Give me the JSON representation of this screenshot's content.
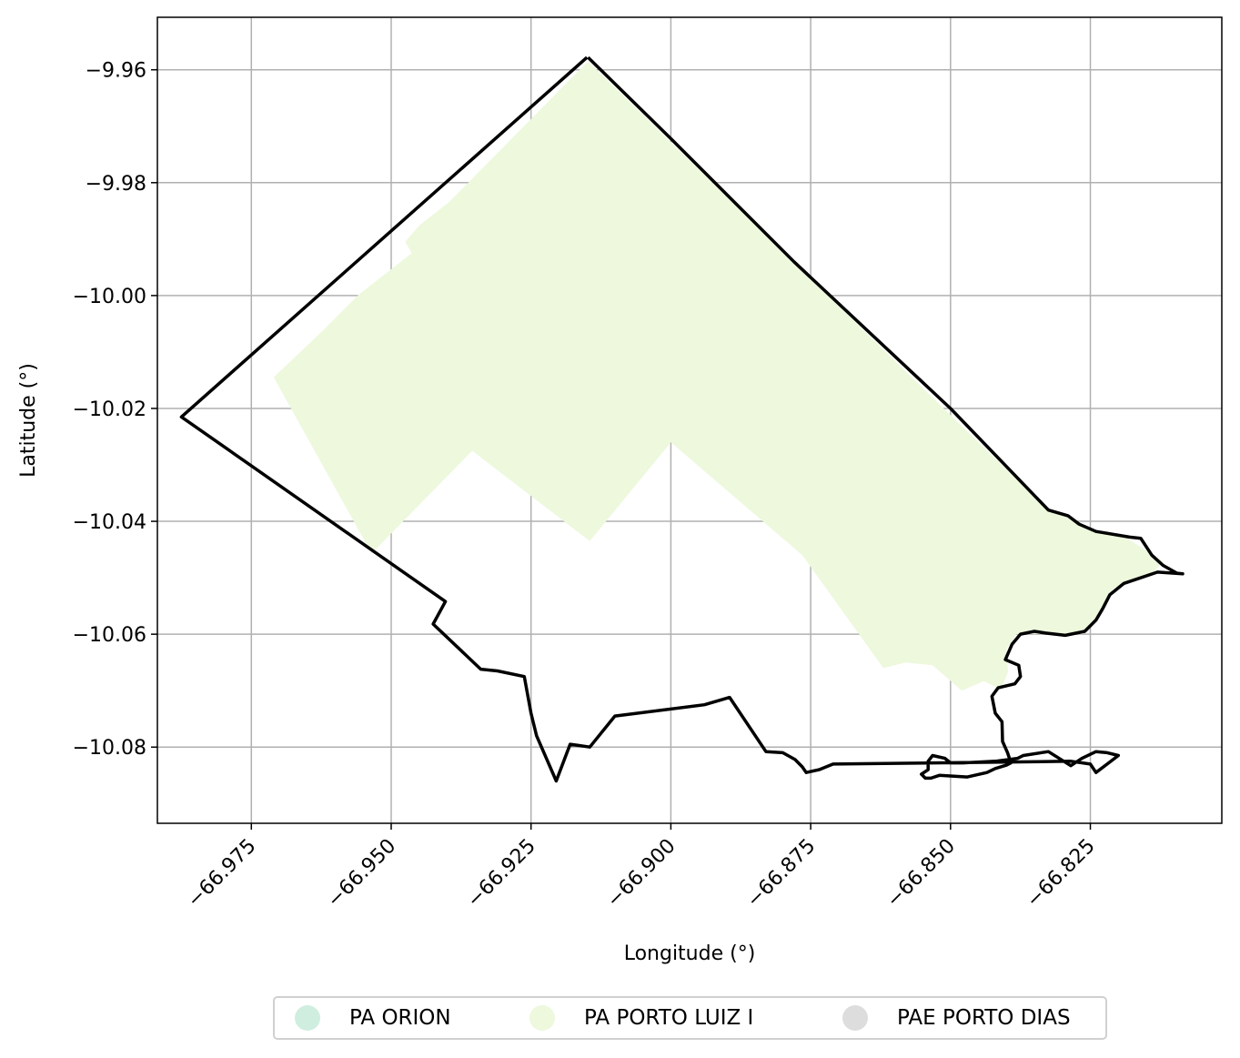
{
  "colors": {
    "pa_orion": "#cfeee0",
    "pa_porto_luiz_i": "#edf8dd",
    "pae_porto_dias": "#dddddd",
    "boundary": "#000000",
    "grid": "#b0b0b0"
  },
  "chart_data": {
    "type": "map",
    "xlabel": "Longitude (°)",
    "ylabel": "Latitude (°)",
    "xlim": [
      -66.9918,
      -66.8015
    ],
    "ylim": [
      -10.0935,
      -9.9507
    ],
    "grid": true,
    "legend_position": "bottom-center",
    "x_ticks": [
      -66.975,
      -66.95,
      -66.925,
      -66.9,
      -66.875,
      -66.85,
      -66.825
    ],
    "x_tick_labels": [
      "−66.975",
      "−66.950",
      "−66.925",
      "−66.900",
      "−66.875",
      "−66.850",
      "−66.825"
    ],
    "y_ticks": [
      -9.96,
      -9.98,
      -10.0,
      -10.02,
      -10.04,
      -10.06,
      -10.08
    ],
    "y_tick_labels": [
      "−9.96",
      "−9.98",
      "−10.00",
      "−10.02",
      "−10.04",
      "−10.06",
      "−10.08"
    ],
    "legend": [
      {
        "name": "PA ORION",
        "color_key": "pa_orion"
      },
      {
        "name": "PA PORTO LUIZ I",
        "color_key": "pa_porto_luiz_i"
      },
      {
        "name": "PAE PORTO DIAS",
        "color_key": "pae_porto_dias"
      }
    ],
    "filled_region": {
      "name": "PA PORTO LUIZ I",
      "coords": [
        [
          -66.9148,
          -9.9585
        ],
        [
          -66.8327,
          -10.0379
        ],
        [
          -66.8265,
          -10.0403
        ],
        [
          -66.8253,
          -10.0415
        ],
        [
          -66.8192,
          -10.0425
        ],
        [
          -66.812,
          -10.0471
        ],
        [
          -66.814,
          -10.0493
        ],
        [
          -66.821,
          -10.0519
        ],
        [
          -66.8234,
          -10.057
        ],
        [
          -66.8264,
          -10.06
        ],
        [
          -66.8382,
          -10.06
        ],
        [
          -66.84,
          -10.0626
        ],
        [
          -66.8397,
          -10.0667
        ],
        [
          -66.841,
          -10.0698
        ],
        [
          -66.844,
          -10.0683
        ],
        [
          -66.848,
          -10.07
        ],
        [
          -66.8532,
          -10.0655
        ],
        [
          -66.858,
          -10.065
        ],
        [
          -66.862,
          -10.066
        ],
        [
          -66.8765,
          -10.046
        ],
        [
          -66.9,
          -10.026
        ],
        [
          -66.9145,
          -10.0435
        ],
        [
          -66.9355,
          -10.0275
        ],
        [
          -66.9535,
          -10.0457
        ],
        [
          -66.971,
          -10.0145
        ],
        [
          -66.962,
          -10.006
        ],
        [
          -66.956,
          -10.0
        ],
        [
          -66.9463,
          -9.9925
        ],
        [
          -66.9475,
          -9.9905
        ],
        [
          -66.945,
          -9.9876
        ],
        [
          -66.9397,
          -9.9835
        ]
      ]
    },
    "boundary": {
      "coords": [
        [
          -66.9148,
          -9.9578
        ],
        [
          -66.9,
          -9.9722
        ],
        [
          -66.878,
          -9.994
        ],
        [
          -66.85,
          -10.02
        ],
        [
          -66.8325,
          -10.038
        ],
        [
          -66.829,
          -10.039
        ],
        [
          -66.827,
          -10.0405
        ],
        [
          -66.824,
          -10.0418
        ],
        [
          -66.818,
          -10.0428
        ],
        [
          -66.816,
          -10.043
        ],
        [
          -66.814,
          -10.046
        ],
        [
          -66.812,
          -10.0478
        ],
        [
          -66.8095,
          -10.0492
        ],
        [
          -66.8085,
          -10.0493
        ],
        [
          -66.813,
          -10.049
        ],
        [
          -66.819,
          -10.051
        ],
        [
          -66.8215,
          -10.053
        ],
        [
          -66.8228,
          -10.0555
        ],
        [
          -66.824,
          -10.0575
        ],
        [
          -66.826,
          -10.0595
        ],
        [
          -66.8295,
          -10.0602
        ],
        [
          -66.833,
          -10.0598
        ],
        [
          -66.835,
          -10.0595
        ],
        [
          -66.8375,
          -10.06
        ],
        [
          -66.839,
          -10.0618
        ],
        [
          -66.8402,
          -10.0645
        ],
        [
          -66.8378,
          -10.0655
        ],
        [
          -66.8375,
          -10.0675
        ],
        [
          -66.8385,
          -10.0688
        ],
        [
          -66.8415,
          -10.0695
        ],
        [
          -66.8426,
          -10.071
        ],
        [
          -66.842,
          -10.074
        ],
        [
          -66.8408,
          -10.0755
        ],
        [
          -66.8407,
          -10.079
        ],
        [
          -66.8398,
          -10.081
        ],
        [
          -66.8392,
          -10.0828
        ],
        [
          -66.84,
          -10.0832
        ],
        [
          -66.842,
          -10.0838
        ],
        [
          -66.8435,
          -10.0845
        ],
        [
          -66.847,
          -10.0853
        ],
        [
          -66.852,
          -10.085
        ],
        [
          -66.8535,
          -10.0855
        ],
        [
          -66.8545,
          -10.0855
        ],
        [
          -66.8552,
          -10.0848
        ],
        [
          -66.854,
          -10.084
        ],
        [
          -66.854,
          -10.0825
        ],
        [
          -66.8532,
          -10.0815
        ],
        [
          -66.851,
          -10.082
        ],
        [
          -66.85,
          -10.0828
        ],
        [
          -66.8478,
          -10.0828
        ],
        [
          -66.842,
          -10.0825
        ],
        [
          -66.838,
          -10.082
        ],
        [
          -66.837,
          -10.0815
        ],
        [
          -66.8325,
          -10.0808
        ],
        [
          -66.8285,
          -10.0833
        ],
        [
          -66.8265,
          -10.082
        ],
        [
          -66.824,
          -10.0808
        ],
        [
          -66.822,
          -10.081
        ],
        [
          -66.82,
          -10.0815
        ],
        [
          -66.822,
          -10.083
        ],
        [
          -66.824,
          -10.0845
        ],
        [
          -66.825,
          -10.083
        ],
        [
          -66.8285,
          -10.0825
        ],
        [
          -66.871,
          -10.083
        ],
        [
          -66.8735,
          -10.084
        ],
        [
          -66.8758,
          -10.0845
        ],
        [
          -66.8765,
          -10.0835
        ],
        [
          -66.8778,
          -10.0822
        ],
        [
          -66.88,
          -10.081
        ],
        [
          -66.883,
          -10.0808
        ],
        [
          -66.8895,
          -10.0712
        ],
        [
          -66.894,
          -10.0725
        ],
        [
          -66.91,
          -10.0745
        ],
        [
          -66.9145,
          -10.08
        ],
        [
          -66.918,
          -10.0795
        ],
        [
          -66.9205,
          -10.086
        ],
        [
          -66.924,
          -10.078
        ],
        [
          -66.925,
          -10.074
        ],
        [
          -66.9262,
          -10.0675
        ],
        [
          -66.931,
          -10.0665
        ],
        [
          -66.934,
          -10.0662
        ],
        [
          -66.9425,
          -10.0582
        ],
        [
          -66.9403,
          -10.0542
        ],
        [
          -66.9875,
          -10.0215
        ],
        [
          -66.915,
          -9.9578
        ]
      ]
    }
  }
}
